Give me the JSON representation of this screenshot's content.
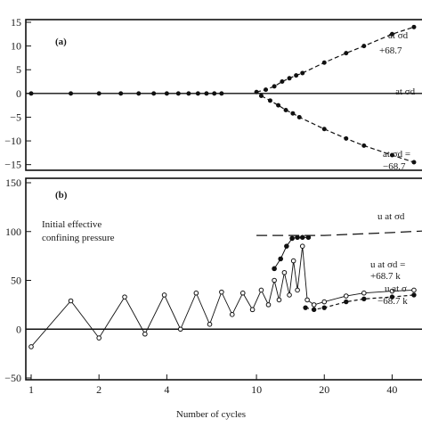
{
  "chart_data": [
    {
      "id": "a",
      "type": "line",
      "panel_label": "(a)",
      "title": "",
      "ylabel": "",
      "ylim": [
        -16,
        15
      ],
      "yticks": [
        15,
        10,
        5,
        0,
        -5,
        -10,
        -15
      ],
      "xscale": "log",
      "xlim": [
        1,
        60
      ],
      "grid": false,
      "annotations": [
        {
          "line1": "at σd",
          "line2": "+68.7"
        },
        {
          "line1": "at σd",
          "line2": ""
        },
        {
          "line1": "at σd =",
          "line2": "−68.7"
        }
      ],
      "series": [
        {
          "values": [
            [
              1,
              0
            ],
            [
              1.5,
              0
            ],
            [
              2,
              0
            ],
            [
              2.5,
              0
            ],
            [
              3,
              0
            ],
            [
              3.5,
              0
            ],
            [
              4,
              0
            ],
            [
              4.5,
              0
            ],
            [
              5,
              0
            ],
            [
              5.5,
              0
            ],
            [
              6,
              0
            ],
            [
              6.5,
              0
            ],
            [
              7,
              0
            ]
          ]
        },
        {
          "values": [
            [
              10,
              0.3
            ],
            [
              11,
              0.8
            ],
            [
              12,
              1.5
            ],
            [
              13,
              2.5
            ],
            [
              14,
              3.2
            ],
            [
              15,
              3.8
            ],
            [
              16,
              4.3
            ],
            [
              20,
              6.5
            ],
            [
              25,
              8.5
            ],
            [
              30,
              10
            ],
            [
              40,
              12.5
            ],
            [
              50,
              14
            ]
          ]
        },
        {
          "values": [
            [
              10.5,
              -0.5
            ],
            [
              11.5,
              -1.5
            ],
            [
              12.5,
              -2.5
            ],
            [
              13.5,
              -3.5
            ],
            [
              14.5,
              -4.2
            ],
            [
              15.5,
              -5
            ],
            [
              20,
              -7.5
            ],
            [
              25,
              -9.5
            ],
            [
              30,
              -11
            ],
            [
              40,
              -13
            ],
            [
              50,
              -14.5
            ]
          ]
        }
      ]
    },
    {
      "id": "b",
      "type": "line",
      "panel_label": "(b)",
      "title": "",
      "xlabel": "Number of cycles",
      "ylabel": "",
      "ylim": [
        -50,
        150
      ],
      "yticks": [
        150,
        100,
        50,
        0,
        -50
      ],
      "xscale": "log",
      "xlim": [
        1,
        60
      ],
      "xticks": [
        1,
        2,
        4,
        10,
        20,
        40
      ],
      "grid": false,
      "annotations": [
        {
          "line1": "Initial effective",
          "line2": "confining pressure"
        },
        {
          "line1": "u at σd",
          "line2": ""
        },
        {
          "line1": "u at σd =",
          "line2": "+68.7 k"
        },
        {
          "line1": "u at σ",
          "line2": "−68.7 k"
        }
      ],
      "series": [
        {
          "values": [
            [
              10,
              96
            ],
            [
              20,
              96
            ],
            [
              40,
              99
            ],
            [
              60,
              101
            ]
          ]
        },
        {
          "values": [
            [
              1,
              -18
            ],
            [
              1.5,
              29
            ],
            [
              2,
              -9
            ],
            [
              2.6,
              33
            ],
            [
              3.2,
              -5
            ],
            [
              3.9,
              35
            ],
            [
              4.6,
              0
            ],
            [
              5.4,
              37
            ],
            [
              6.2,
              5
            ],
            [
              7,
              38
            ],
            [
              7.8,
              15
            ],
            [
              8.7,
              37
            ],
            [
              9.6,
              20
            ],
            [
              10.5,
              40
            ],
            [
              11.3,
              25
            ],
            [
              12,
              50
            ],
            [
              12.6,
              30
            ],
            [
              13.3,
              58
            ],
            [
              14,
              35
            ],
            [
              14.6,
              70
            ],
            [
              15.2,
              40
            ],
            [
              16,
              85
            ],
            [
              16.8,
              30
            ],
            [
              18,
              25
            ],
            [
              20,
              28
            ],
            [
              25,
              34
            ],
            [
              30,
              37
            ],
            [
              40,
              39
            ],
            [
              50,
              40
            ]
          ]
        },
        {
          "values": [
            [
              12,
              62
            ],
            [
              12.8,
              72
            ],
            [
              13.6,
              85
            ],
            [
              14.4,
              93
            ],
            [
              15.2,
              94
            ],
            [
              16,
              94
            ],
            [
              17,
              94
            ]
          ]
        },
        {
          "values": [
            [
              16.5,
              22
            ],
            [
              18,
              20
            ],
            [
              20,
              22
            ],
            [
              25,
              28
            ],
            [
              30,
              31
            ],
            [
              40,
              33
            ],
            [
              50,
              35
            ]
          ]
        }
      ]
    }
  ]
}
